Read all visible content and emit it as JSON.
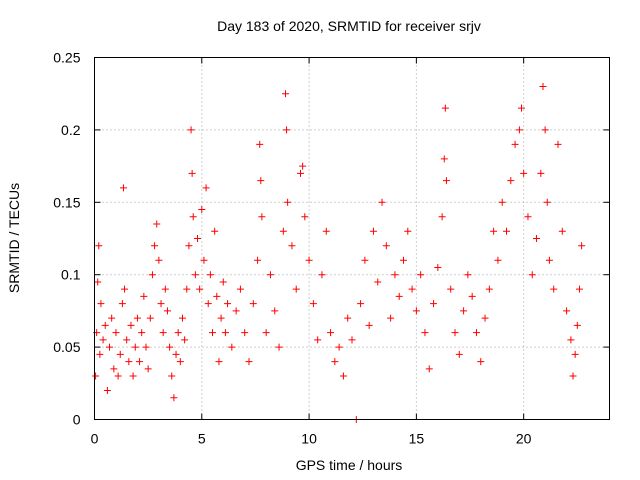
{
  "chart_data": {
    "type": "scatter",
    "title": "Day 183 of 2020, SRMTID for receiver srjv",
    "xlabel": "GPS time / hours",
    "ylabel": "SRMTID / TECUs",
    "xlim": [
      0,
      24
    ],
    "ylim": [
      0,
      0.25
    ],
    "xticks": [
      0,
      5,
      10,
      15,
      20
    ],
    "xtick_labels": [
      "0",
      "5",
      "10",
      "15",
      "20"
    ],
    "yticks": [
      0,
      0.05,
      0.1,
      0.15,
      0.2,
      0.25
    ],
    "ytick_labels": [
      "0",
      "0.05",
      "0.1",
      "0.15",
      "0.2",
      "0.25"
    ],
    "grid": true,
    "marker": "+",
    "series": [
      {
        "name": "SRMTID",
        "color": "#ff0000",
        "points": [
          [
            0.05,
            0.03
          ],
          [
            0.1,
            0.06
          ],
          [
            0.15,
            0.095
          ],
          [
            0.2,
            0.12
          ],
          [
            0.25,
            0.045
          ],
          [
            0.3,
            0.08
          ],
          [
            0.4,
            0.055
          ],
          [
            0.5,
            0.065
          ],
          [
            0.6,
            0.02
          ],
          [
            0.7,
            0.05
          ],
          [
            0.8,
            0.07
          ],
          [
            0.9,
            0.035
          ],
          [
            1.0,
            0.06
          ],
          [
            1.1,
            0.03
          ],
          [
            1.2,
            0.045
          ],
          [
            1.3,
            0.08
          ],
          [
            1.35,
            0.16
          ],
          [
            1.4,
            0.09
          ],
          [
            1.5,
            0.055
          ],
          [
            1.6,
            0.04
          ],
          [
            1.7,
            0.065
          ],
          [
            1.8,
            0.03
          ],
          [
            1.9,
            0.05
          ],
          [
            2.0,
            0.07
          ],
          [
            2.1,
            0.04
          ],
          [
            2.2,
            0.06
          ],
          [
            2.3,
            0.085
          ],
          [
            2.4,
            0.05
          ],
          [
            2.5,
            0.035
          ],
          [
            2.6,
            0.07
          ],
          [
            2.7,
            0.1
          ],
          [
            2.8,
            0.12
          ],
          [
            2.9,
            0.135
          ],
          [
            3.0,
            0.11
          ],
          [
            3.1,
            0.08
          ],
          [
            3.2,
            0.06
          ],
          [
            3.3,
            0.09
          ],
          [
            3.4,
            0.075
          ],
          [
            3.5,
            0.05
          ],
          [
            3.6,
            0.03
          ],
          [
            3.7,
            0.015
          ],
          [
            3.8,
            0.045
          ],
          [
            3.9,
            0.06
          ],
          [
            4.0,
            0.04
          ],
          [
            4.1,
            0.07
          ],
          [
            4.2,
            0.055
          ],
          [
            4.3,
            0.09
          ],
          [
            4.4,
            0.12
          ],
          [
            4.5,
            0.2
          ],
          [
            4.55,
            0.17
          ],
          [
            4.6,
            0.14
          ],
          [
            4.7,
            0.1
          ],
          [
            4.8,
            0.125
          ],
          [
            4.9,
            0.09
          ],
          [
            5.0,
            0.145
          ],
          [
            5.1,
            0.11
          ],
          [
            5.2,
            0.16
          ],
          [
            5.3,
            0.08
          ],
          [
            5.4,
            0.1
          ],
          [
            5.5,
            0.06
          ],
          [
            5.6,
            0.13
          ],
          [
            5.7,
            0.085
          ],
          [
            5.8,
            0.04
          ],
          [
            5.9,
            0.07
          ],
          [
            6.0,
            0.095
          ],
          [
            6.1,
            0.06
          ],
          [
            6.2,
            0.08
          ],
          [
            6.4,
            0.05
          ],
          [
            6.6,
            0.075
          ],
          [
            6.8,
            0.09
          ],
          [
            7.0,
            0.06
          ],
          [
            7.2,
            0.04
          ],
          [
            7.4,
            0.08
          ],
          [
            7.6,
            0.11
          ],
          [
            7.7,
            0.19
          ],
          [
            7.75,
            0.165
          ],
          [
            7.8,
            0.14
          ],
          [
            8.0,
            0.06
          ],
          [
            8.2,
            0.1
          ],
          [
            8.4,
            0.075
          ],
          [
            8.6,
            0.05
          ],
          [
            8.8,
            0.13
          ],
          [
            8.9,
            0.225
          ],
          [
            8.95,
            0.2
          ],
          [
            9.0,
            0.15
          ],
          [
            9.2,
            0.12
          ],
          [
            9.4,
            0.09
          ],
          [
            9.6,
            0.17
          ],
          [
            9.7,
            0.175
          ],
          [
            9.8,
            0.14
          ],
          [
            10.0,
            0.11
          ],
          [
            10.2,
            0.08
          ],
          [
            10.4,
            0.055
          ],
          [
            10.6,
            0.1
          ],
          [
            10.8,
            0.13
          ],
          [
            11.0,
            0.06
          ],
          [
            11.2,
            0.04
          ],
          [
            11.4,
            0.05
          ],
          [
            11.6,
            0.03
          ],
          [
            11.8,
            0.07
          ],
          [
            12.0,
            0.055
          ],
          [
            12.2,
            0.0
          ],
          [
            12.4,
            0.08
          ],
          [
            12.6,
            0.11
          ],
          [
            12.8,
            0.065
          ],
          [
            13.0,
            0.13
          ],
          [
            13.2,
            0.095
          ],
          [
            13.4,
            0.15
          ],
          [
            13.6,
            0.12
          ],
          [
            13.8,
            0.07
          ],
          [
            14.0,
            0.1
          ],
          [
            14.2,
            0.085
          ],
          [
            14.4,
            0.11
          ],
          [
            14.6,
            0.13
          ],
          [
            14.8,
            0.09
          ],
          [
            15.0,
            0.075
          ],
          [
            15.2,
            0.1
          ],
          [
            15.4,
            0.06
          ],
          [
            15.6,
            0.035
          ],
          [
            15.8,
            0.08
          ],
          [
            16.0,
            0.105
          ],
          [
            16.2,
            0.14
          ],
          [
            16.3,
            0.18
          ],
          [
            16.35,
            0.215
          ],
          [
            16.4,
            0.165
          ],
          [
            16.6,
            0.09
          ],
          [
            16.8,
            0.06
          ],
          [
            17.0,
            0.045
          ],
          [
            17.2,
            0.075
          ],
          [
            17.4,
            0.1
          ],
          [
            17.6,
            0.085
          ],
          [
            17.8,
            0.06
          ],
          [
            18.0,
            0.04
          ],
          [
            18.2,
            0.07
          ],
          [
            18.4,
            0.09
          ],
          [
            18.6,
            0.13
          ],
          [
            18.8,
            0.11
          ],
          [
            19.0,
            0.15
          ],
          [
            19.2,
            0.13
          ],
          [
            19.4,
            0.165
          ],
          [
            19.6,
            0.19
          ],
          [
            19.8,
            0.2
          ],
          [
            19.9,
            0.215
          ],
          [
            20.0,
            0.17
          ],
          [
            20.2,
            0.14
          ],
          [
            20.4,
            0.1
          ],
          [
            20.6,
            0.125
          ],
          [
            20.8,
            0.17
          ],
          [
            20.9,
            0.23
          ],
          [
            21.0,
            0.2
          ],
          [
            21.1,
            0.15
          ],
          [
            21.2,
            0.11
          ],
          [
            21.4,
            0.09
          ],
          [
            21.6,
            0.19
          ],
          [
            21.8,
            0.13
          ],
          [
            22.0,
            0.075
          ],
          [
            22.2,
            0.055
          ],
          [
            22.3,
            0.03
          ],
          [
            22.4,
            0.045
          ],
          [
            22.5,
            0.065
          ],
          [
            22.6,
            0.09
          ],
          [
            22.7,
            0.12
          ]
        ]
      }
    ]
  }
}
